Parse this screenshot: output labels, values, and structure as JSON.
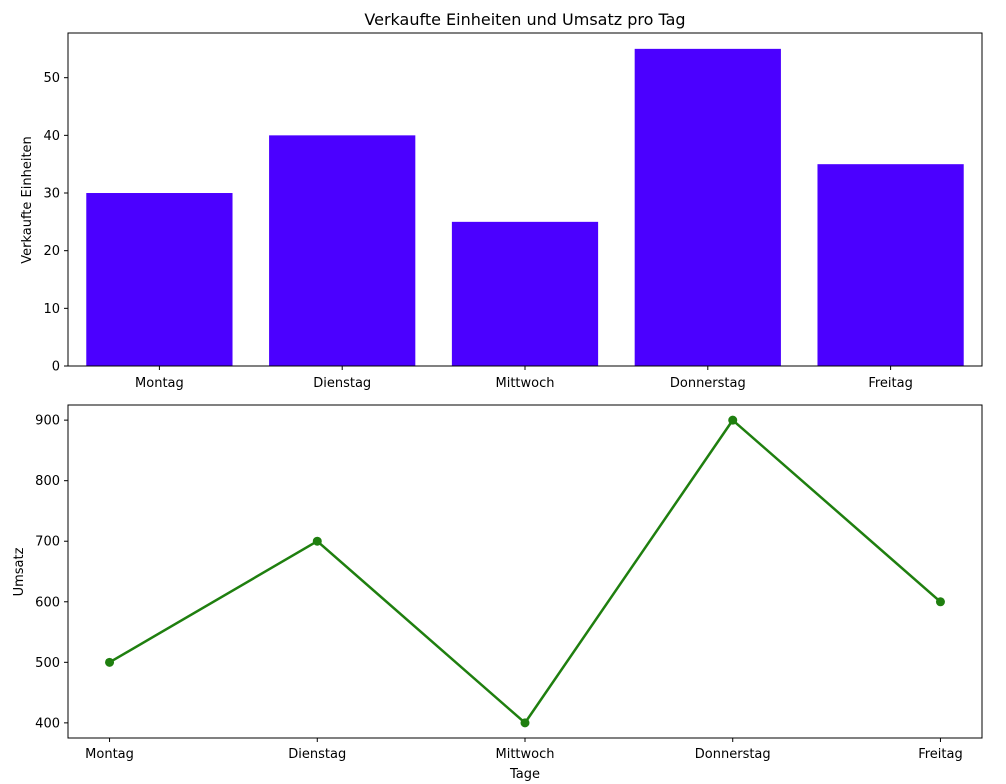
{
  "chart_data": [
    {
      "type": "bar",
      "title": "Verkaufte Einheiten und Umsatz pro Tag",
      "xlabel": "",
      "ylabel": "Verkaufte Einheiten",
      "categories": [
        "Montag",
        "Dienstag",
        "Mittwoch",
        "Donnerstag",
        "Freitag"
      ],
      "values": [
        30,
        40,
        25,
        55,
        35
      ],
      "ylim": [
        0,
        57.75
      ],
      "yticks": [
        0,
        10,
        20,
        30,
        40,
        50
      ],
      "color": "#4b00ff",
      "grid": false,
      "legend": "none"
    },
    {
      "type": "line",
      "title": "",
      "xlabel": "Tage",
      "ylabel": "Umsatz",
      "categories": [
        "Montag",
        "Dienstag",
        "Mittwoch",
        "Donnerstag",
        "Freitag"
      ],
      "values": [
        500,
        700,
        400,
        900,
        600
      ],
      "ylim": [
        375,
        925
      ],
      "yticks": [
        400,
        500,
        600,
        700,
        800,
        900
      ],
      "color": "#1f7f0f",
      "marker": "circle",
      "grid": false,
      "legend": "none"
    }
  ]
}
